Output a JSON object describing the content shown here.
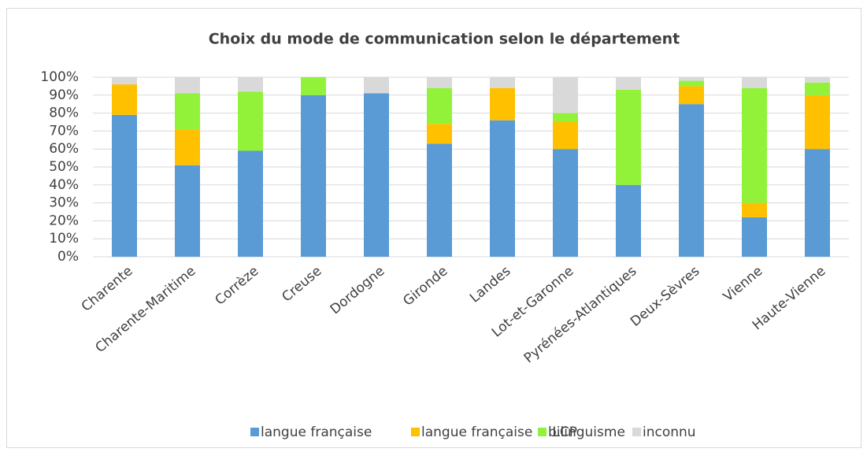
{
  "chart_data": {
    "type": "stacked_bar",
    "title": "Choix du mode de communication selon le département",
    "categories": [
      "Charente",
      "Charente-Maritime",
      "Corrèze",
      "Creuse",
      "Dordogne",
      "Gironde",
      "Landes",
      "Lot-et-Garonne",
      "Pyrénées-Atlantiques",
      "Deux-Sèvres",
      "Vienne",
      "Haute-Vienne"
    ],
    "series": [
      {
        "name": "langue française",
        "color": "#5b9bd5",
        "values": [
          79,
          51,
          59,
          90,
          91,
          63,
          76,
          60,
          40,
          85,
          22,
          60
        ]
      },
      {
        "name": "langue française + LCP",
        "color": "#ffc000",
        "values": [
          17,
          20,
          0,
          0,
          0,
          11,
          18,
          15,
          0,
          10,
          8,
          30
        ]
      },
      {
        "name": "bilinguisme",
        "color": "#92f23a",
        "values": [
          0,
          20,
          33,
          10,
          0,
          20,
          0,
          5,
          53,
          3,
          64,
          7
        ]
      },
      {
        "name": "inconnu",
        "color": "#d9d9d9",
        "values": [
          4,
          9,
          8,
          0,
          9,
          6,
          6,
          20,
          7,
          2,
          6,
          3
        ]
      }
    ],
    "ylim": [
      0,
      100
    ],
    "yticks": [
      {
        "value": 0,
        "label": "0%"
      },
      {
        "value": 10,
        "label": "10%"
      },
      {
        "value": 20,
        "label": "20%"
      },
      {
        "value": 30,
        "label": "30%"
      },
      {
        "value": 40,
        "label": "40%"
      },
      {
        "value": 50,
        "label": "50%"
      },
      {
        "value": 60,
        "label": "60%"
      },
      {
        "value": 70,
        "label": "70%"
      },
      {
        "value": 80,
        "label": "80%"
      },
      {
        "value": 90,
        "label": "90%"
      },
      {
        "value": 100,
        "label": "100%"
      }
    ],
    "grid": true,
    "legend": "bottom"
  }
}
